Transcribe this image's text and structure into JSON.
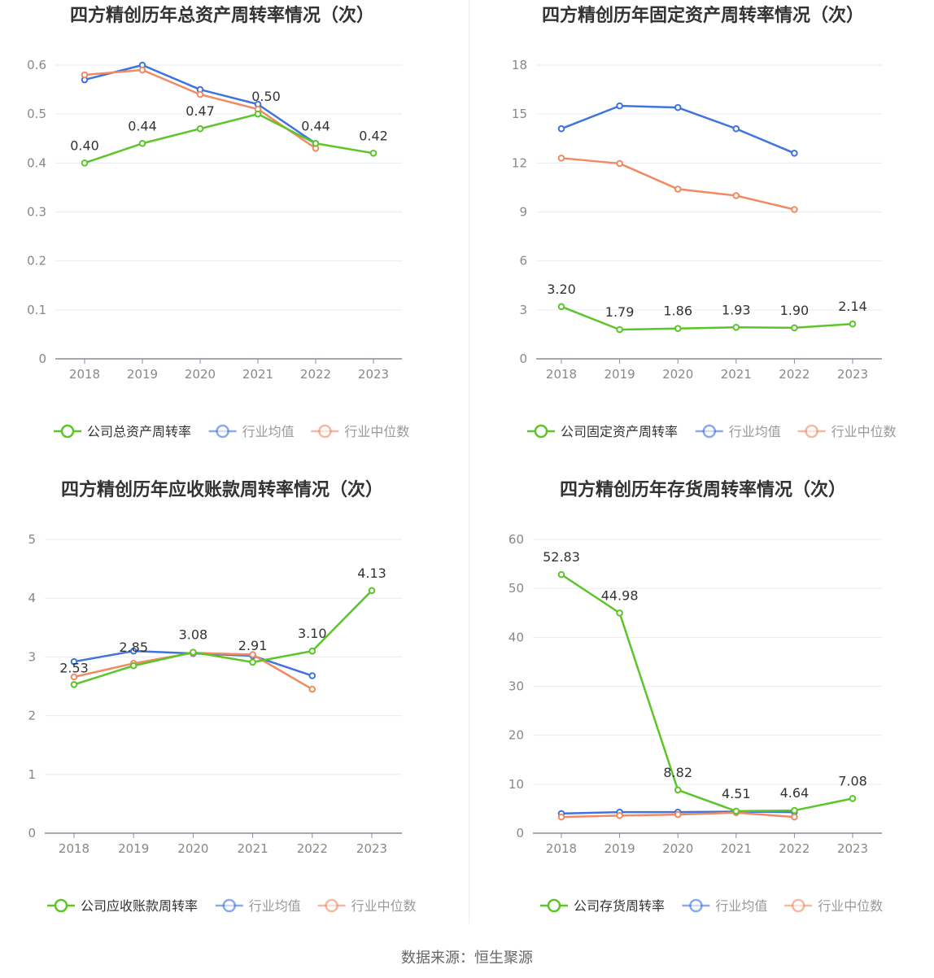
{
  "source": "数据来源：恒生聚源",
  "colors": {
    "company": "#5bc529",
    "average": "#3f73de",
    "median": "#f08a62",
    "grid": "#e8ebf2",
    "axis": "#8a8a99",
    "title": "#333333",
    "tick": "#888888"
  },
  "chart_data": [
    {
      "type": "line",
      "title": "四方精创历年总资产周转率情况（次）",
      "categories": [
        "2018",
        "2019",
        "2020",
        "2021",
        "2022",
        "2023"
      ],
      "ylim": [
        0,
        0.6
      ],
      "yticks": [
        0,
        0.1,
        0.2,
        0.3,
        0.4,
        0.5,
        0.6
      ],
      "ytick_labels": [
        "0",
        "0.1",
        "0.2",
        "0.3",
        "0.4",
        "0.5",
        "0.6"
      ],
      "grid": true,
      "legend_position": "bottom",
      "series": [
        {
          "name": "公司总资产周转率",
          "color": "#5bc529",
          "values": [
            0.4,
            0.44,
            0.47,
            0.5,
            0.44,
            0.42
          ],
          "labels": [
            "0.40",
            "0.44",
            "0.47",
            "0.50",
            "0.44",
            "0.42"
          ]
        },
        {
          "name": "行业均值",
          "color": "#3f73de",
          "values": [
            0.57,
            0.6,
            0.55,
            0.52,
            0.44,
            null
          ]
        },
        {
          "name": "行业中位数",
          "color": "#f08a62",
          "values": [
            0.58,
            0.59,
            0.54,
            0.51,
            0.43,
            null
          ]
        }
      ]
    },
    {
      "type": "line",
      "title": "四方精创历年固定资产周转率情况（次）",
      "categories": [
        "2018",
        "2019",
        "2020",
        "2021",
        "2022",
        "2023"
      ],
      "ylim": [
        0,
        18
      ],
      "yticks": [
        0,
        3,
        6,
        9,
        12,
        15,
        18
      ],
      "ytick_labels": [
        "0",
        "3",
        "6",
        "9",
        "12",
        "15",
        "18"
      ],
      "grid": true,
      "legend_position": "bottom",
      "series": [
        {
          "name": "公司固定资产周转率",
          "color": "#5bc529",
          "values": [
            3.2,
            1.79,
            1.86,
            1.93,
            1.9,
            2.14
          ],
          "labels": [
            "3.20",
            "1.79",
            "1.86",
            "1.93",
            "1.90",
            "2.14"
          ]
        },
        {
          "name": "行业均值",
          "color": "#3f73de",
          "values": [
            14.1,
            15.5,
            15.4,
            14.1,
            12.6,
            null
          ]
        },
        {
          "name": "行业中位数",
          "color": "#f08a62",
          "values": [
            12.3,
            11.97,
            10.4,
            10.0,
            9.15,
            null
          ]
        }
      ]
    },
    {
      "type": "line",
      "title": "四方精创历年应收账款周转率情况（次）",
      "categories": [
        "2018",
        "2019",
        "2020",
        "2021",
        "2022",
        "2023"
      ],
      "ylim": [
        0,
        5
      ],
      "yticks": [
        0,
        1,
        2,
        3,
        4,
        5
      ],
      "ytick_labels": [
        "0",
        "1",
        "2",
        "3",
        "4",
        "5"
      ],
      "grid": true,
      "legend_position": "bottom",
      "series": [
        {
          "name": "公司应收账款周转率",
          "color": "#5bc529",
          "values": [
            2.53,
            2.85,
            3.08,
            2.91,
            3.1,
            4.13
          ],
          "labels": [
            "2.53",
            "2.85",
            "3.08",
            "2.91",
            "3.10",
            "4.13"
          ]
        },
        {
          "name": "行业均值",
          "color": "#3f73de",
          "values": [
            2.92,
            3.1,
            3.06,
            3.02,
            2.68,
            null
          ]
        },
        {
          "name": "行业中位数",
          "color": "#f08a62",
          "values": [
            2.66,
            2.89,
            3.07,
            3.04,
            2.45,
            null
          ]
        }
      ]
    },
    {
      "type": "line",
      "title": "四方精创历年存货周转率情况（次）",
      "categories": [
        "2018",
        "2019",
        "2020",
        "2021",
        "2022",
        "2023"
      ],
      "ylim": [
        0,
        60
      ],
      "yticks": [
        0,
        10,
        20,
        30,
        40,
        50,
        60
      ],
      "ytick_labels": [
        "0",
        "10",
        "20",
        "30",
        "40",
        "50",
        "60"
      ],
      "grid": true,
      "legend_position": "bottom",
      "series": [
        {
          "name": "公司存货周转率",
          "color": "#5bc529",
          "values": [
            52.83,
            44.98,
            8.82,
            4.51,
            4.64,
            7.08
          ],
          "labels": [
            "52.83",
            "44.98",
            "8.82",
            "4.51",
            "4.64",
            "7.08"
          ]
        },
        {
          "name": "行业均值",
          "color": "#3f73de",
          "values": [
            4.0,
            4.3,
            4.3,
            4.4,
            4.3,
            null
          ]
        },
        {
          "name": "行业中位数",
          "color": "#f08a62",
          "values": [
            3.3,
            3.6,
            3.8,
            4.2,
            3.3,
            null
          ]
        }
      ]
    }
  ]
}
